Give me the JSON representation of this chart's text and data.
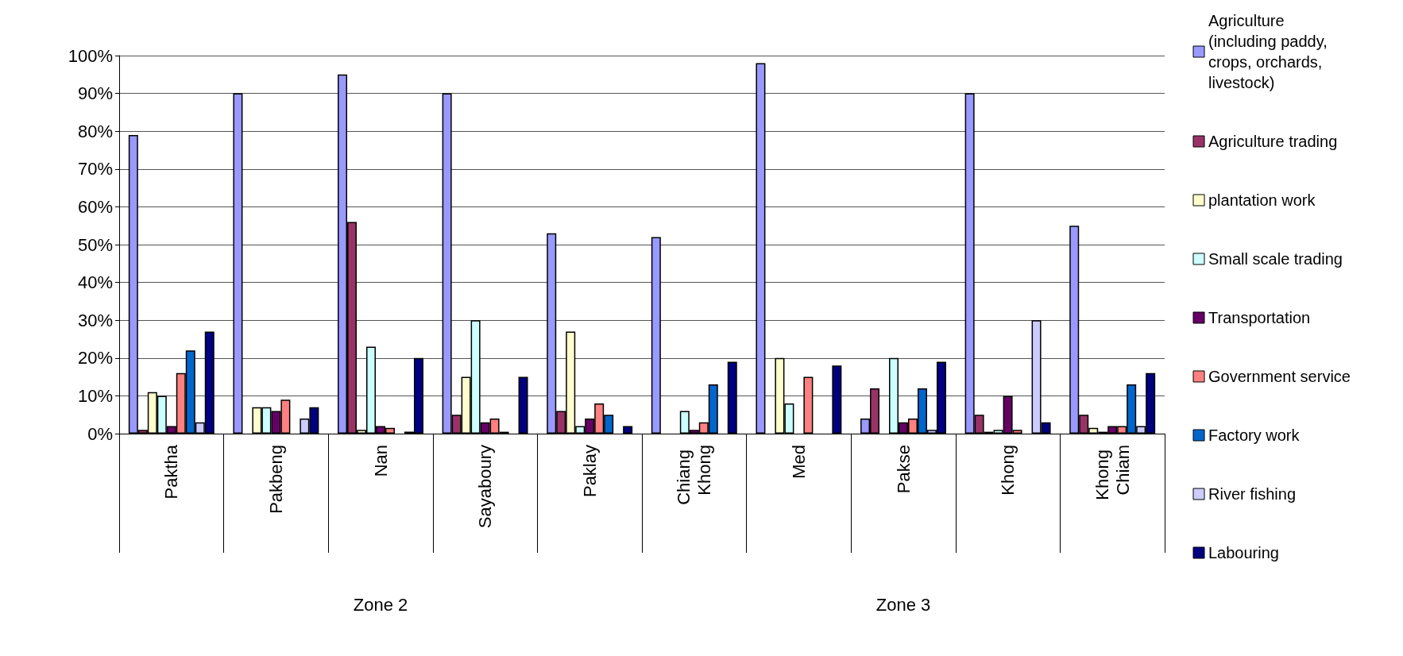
{
  "chart_data": {
    "type": "bar",
    "categories": [
      "Paktha",
      "Pakbeng",
      "Nan",
      "Sayaboury",
      "Paklay",
      "Chiang Khong",
      "Med",
      "Pakse",
      "Khong",
      "Khong Chiam"
    ],
    "annotations": [
      "Zone 2",
      "Zone 3"
    ],
    "series": [
      {
        "name": "Agriculture (including paddy, crops, orchards, livestock)",
        "color": "#9999ff",
        "values": [
          79,
          90,
          95,
          90,
          53,
          52,
          98,
          4,
          90,
          55
        ]
      },
      {
        "name": "Agriculture trading",
        "color": "#993366",
        "values": [
          1,
          null,
          56,
          5,
          6,
          null,
          null,
          12,
          5,
          5
        ]
      },
      {
        "name": "plantation work",
        "color": "#ffffcc",
        "values": [
          11,
          7,
          1,
          15,
          27,
          null,
          20,
          null,
          0.5,
          1.5
        ]
      },
      {
        "name": "Small scale trading",
        "color": "#ccffff",
        "values": [
          10,
          7,
          23,
          30,
          2,
          6,
          8,
          20,
          1,
          0.5
        ]
      },
      {
        "name": "Transportation",
        "color": "#660066",
        "values": [
          2,
          6,
          2,
          3,
          4,
          1,
          null,
          3,
          10,
          2
        ]
      },
      {
        "name": "Government service",
        "color": "#ff8080",
        "values": [
          16,
          9,
          1.5,
          4,
          8,
          3,
          15,
          4,
          1,
          2
        ]
      },
      {
        "name": "Factory work",
        "color": "#0066cc",
        "values": [
          22,
          null,
          null,
          0.5,
          5,
          13,
          null,
          12,
          null,
          13
        ]
      },
      {
        "name": "River fishing",
        "color": "#ccccff",
        "values": [
          3,
          4,
          0.5,
          null,
          null,
          null,
          null,
          1,
          30,
          2
        ]
      },
      {
        "name": "Labouring",
        "color": "#000080",
        "values": [
          27,
          7,
          20,
          15,
          2,
          19,
          18,
          19,
          3,
          16
        ]
      }
    ],
    "ylim": [
      0,
      100
    ],
    "yticks": [
      {
        "value": 0,
        "label": "0%"
      },
      {
        "value": 10,
        "label": "10%"
      },
      {
        "value": 20,
        "label": "20%"
      },
      {
        "value": 30,
        "label": "30%"
      },
      {
        "value": 40,
        "label": "40%"
      },
      {
        "value": 50,
        "label": "50%"
      },
      {
        "value": 60,
        "label": "60%"
      },
      {
        "value": 70,
        "label": "70%"
      },
      {
        "value": 80,
        "label": "80%"
      },
      {
        "value": 90,
        "label": "90%"
      },
      {
        "value": 100,
        "label": "100%"
      }
    ],
    "grid": "y",
    "legend": "right"
  }
}
